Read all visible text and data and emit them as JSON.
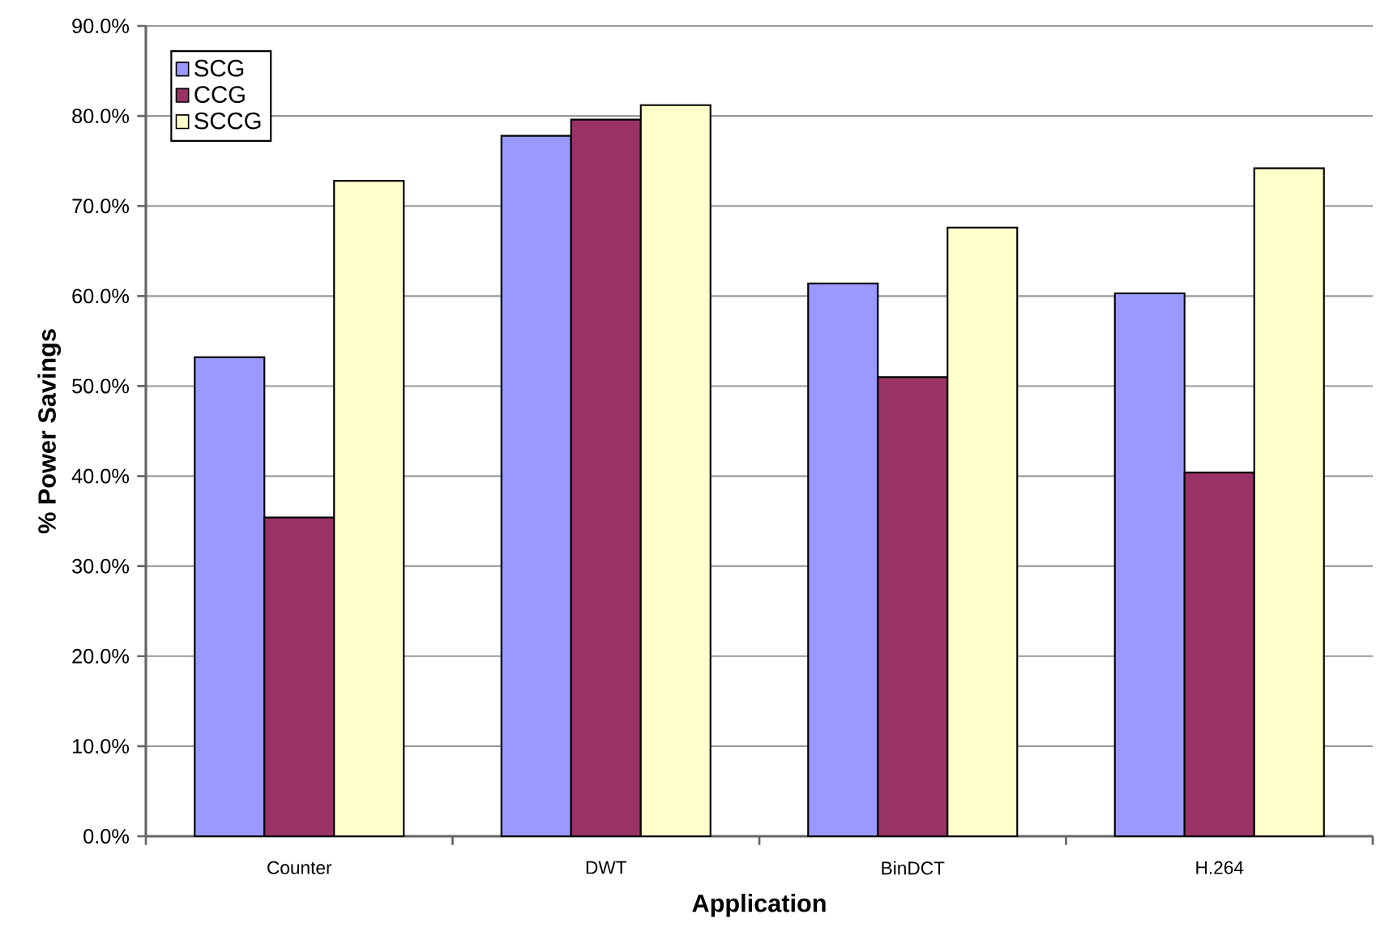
{
  "chart_data": {
    "type": "bar",
    "xlabel": "Application",
    "ylabel": "% Power Savings",
    "categories": [
      "Counter",
      "DWT",
      "BinDCT",
      "H.264"
    ],
    "series": [
      {
        "name": "SCG",
        "color": "#9999ff",
        "values": [
          53.2,
          77.8,
          61.4,
          60.3
        ]
      },
      {
        "name": "CCG",
        "color": "#993366",
        "values": [
          35.4,
          79.6,
          51.0,
          40.4
        ]
      },
      {
        "name": "SCCG",
        "color": "#ffffcc",
        "values": [
          72.8,
          81.2,
          67.6,
          74.2
        ]
      }
    ],
    "ylim": [
      0,
      90
    ],
    "yticks": [
      {
        "value": 0,
        "label": "0.0%"
      },
      {
        "value": 10,
        "label": "10.0%"
      },
      {
        "value": 20,
        "label": "20.0%"
      },
      {
        "value": 30,
        "label": "30.0%"
      },
      {
        "value": 40,
        "label": "40.0%"
      },
      {
        "value": 50,
        "label": "50.0%"
      },
      {
        "value": 60,
        "label": "60.0%"
      },
      {
        "value": 70,
        "label": "70.0%"
      },
      {
        "value": 80,
        "label": "80.0%"
      },
      {
        "value": 90,
        "label": "90.0%"
      }
    ],
    "grid": "y",
    "legend": "top left"
  }
}
